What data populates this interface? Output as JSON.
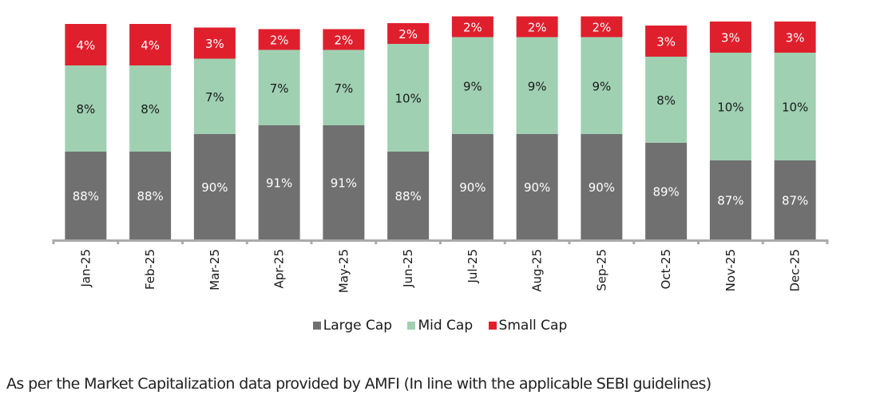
{
  "chart_data": {
    "type": "bar",
    "stacked": true,
    "title": "",
    "xlabel": "",
    "ylabel": "",
    "ylim": [
      0,
      100
    ],
    "grid": false,
    "legend_position": "bottom",
    "categories": [
      "Jan-25",
      "Feb-25",
      "Mar-25",
      "Apr-25",
      "May-25",
      "Jun-25",
      "Jul-25",
      "Aug-25",
      "Sep-25",
      "Oct-25",
      "Nov-25",
      "Dec-25"
    ],
    "series": [
      {
        "name": "Large Cap",
        "color": "#707070",
        "label_color": "#ffffff",
        "values": [
          88,
          88,
          90,
          91,
          91,
          88,
          90,
          90,
          90,
          89,
          87,
          87
        ]
      },
      {
        "name": "Mid Cap",
        "color": "#9fd0b2",
        "label_color": "#1a1a1a",
        "values": [
          8,
          8,
          7,
          7,
          7,
          10,
          9,
          9,
          9,
          8,
          10,
          10
        ]
      },
      {
        "name": "Small Cap",
        "color": "#e01f2d",
        "label_color": "#ffffff",
        "values": [
          4,
          4,
          3,
          2,
          2,
          2,
          2,
          2,
          2,
          3,
          3,
          3
        ]
      }
    ],
    "axis_color": "#aaaaaa",
    "label_suffix": "%"
  },
  "footnote": "As per the Market Capitalization data provided by AMFI (In line with the applicable SEBI guidelines)"
}
